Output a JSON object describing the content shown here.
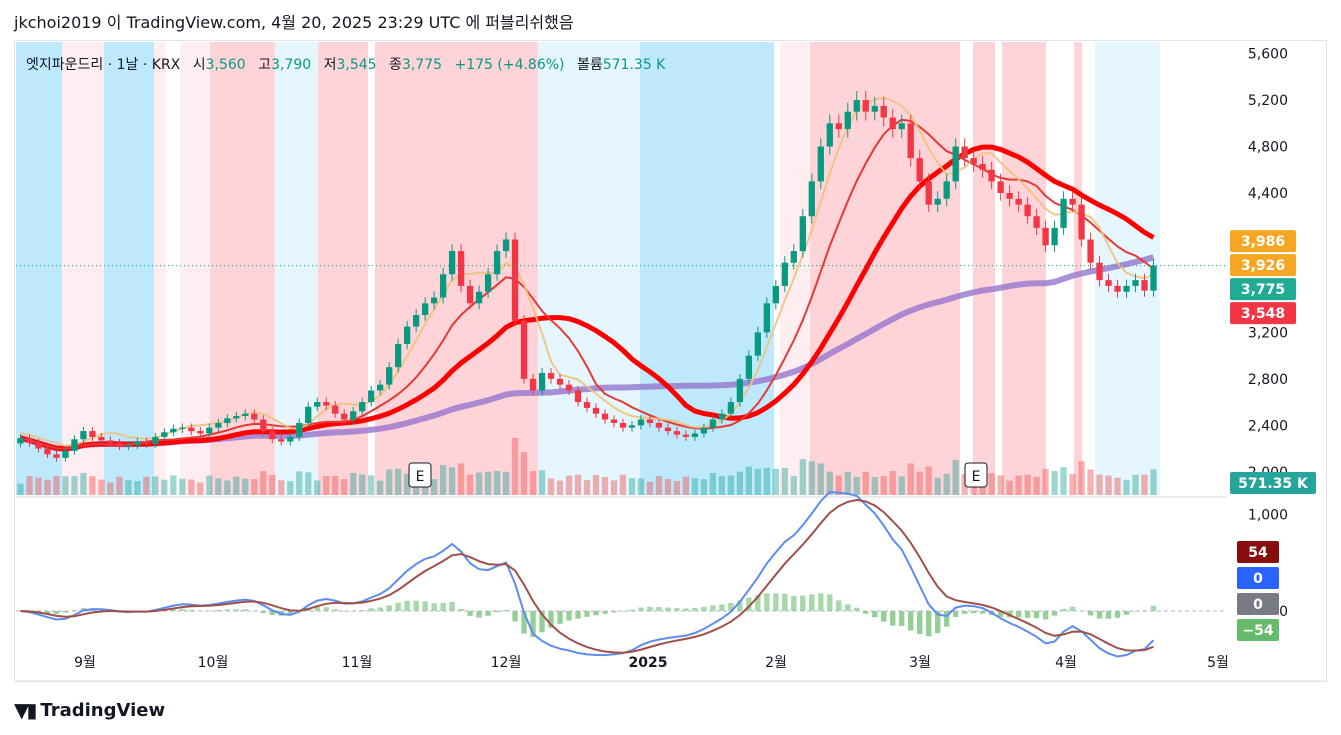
{
  "header": {
    "published_line": "jkchoi2019 이 TradingView.com, 4월 20, 2025 23:29 UTC 에 퍼블리쉬했음"
  },
  "legend": {
    "symbol": "엣지파운드리 · 1날 · KRX",
    "open_label": "시",
    "open_value": "3,560",
    "high_label": "고",
    "high_value": "3,790",
    "low_label": "저",
    "low_value": "3,545",
    "close_label": "종",
    "close_value": "3,775",
    "change": "+175 (+4.86%)",
    "volume_label": "볼륨",
    "volume_value": "571.35 K"
  },
  "price_axis": {
    "ticks": [
      "5,600",
      "5,200",
      "4,800",
      "4,400",
      "4,000",
      "3,600",
      "3,200",
      "2,800",
      "2,400",
      "2,000"
    ],
    "tick_values": [
      5600,
      5200,
      4800,
      4400,
      4000,
      3600,
      3200,
      2800,
      2400,
      2000
    ],
    "badges": [
      {
        "label": "3,986",
        "value": 3986,
        "color": "#f5a623"
      },
      {
        "label": "3,926",
        "value": 3926,
        "color": "#f5a623"
      },
      {
        "label": "3,775",
        "value": 3775,
        "color": "#22ab94"
      },
      {
        "label": "3,548",
        "value": 3548,
        "color": "#f23645"
      }
    ],
    "volume_badge": {
      "label": "571.35 K",
      "color": "#26a69a"
    }
  },
  "osc_axis": {
    "ticks": [
      "1,000",
      "0"
    ],
    "tick_values": [
      1000,
      0
    ],
    "badges": [
      {
        "label": "54",
        "value": 54,
        "color": "#880e0e"
      },
      {
        "label": "0",
        "value": 0,
        "color": "#2962ff"
      },
      {
        "label": "0",
        "value": 0,
        "color": "#787b86"
      },
      {
        "label": "−54",
        "value": -54,
        "color": "#66bb6a"
      }
    ]
  },
  "time_axis": {
    "labels": [
      "9월",
      "10월",
      "11월",
      "12월",
      "2025",
      "2월",
      "3월",
      "4월",
      "5월"
    ]
  },
  "earnings_markers": [
    "E",
    "E"
  ],
  "brand": {
    "name": "TradingView"
  },
  "chart_data": {
    "type": "candlestick",
    "price_range": [
      1800,
      5700
    ],
    "oscillator_range": [
      -300,
      1150
    ],
    "last_close": 3775,
    "ohlc_last": {
      "open": 3560,
      "high": 3790,
      "low": 3545,
      "close": 3775
    },
    "close_series": [
      2290,
      2250,
      2200,
      2150,
      2120,
      2180,
      2280,
      2350,
      2300,
      2270,
      2250,
      2220,
      2230,
      2260,
      2240,
      2300,
      2340,
      2370,
      2380,
      2350,
      2330,
      2380,
      2420,
      2460,
      2480,
      2500,
      2450,
      2350,
      2280,
      2260,
      2300,
      2420,
      2560,
      2600,
      2570,
      2500,
      2450,
      2520,
      2600,
      2700,
      2750,
      2900,
      3100,
      3250,
      3350,
      3450,
      3500,
      3700,
      3900,
      3600,
      3450,
      3550,
      3700,
      3900,
      4000,
      3300,
      2800,
      2700,
      2850,
      2800,
      2750,
      2700,
      2600,
      2550,
      2500,
      2450,
      2420,
      2380,
      2400,
      2450,
      2420,
      2380,
      2350,
      2320,
      2300,
      2330,
      2380,
      2450,
      2500,
      2600,
      2800,
      3000,
      3200,
      3450,
      3600,
      3800,
      3900,
      4200,
      4500,
      4800,
      5000,
      4950,
      5100,
      5200,
      5100,
      5150,
      5050,
      4950,
      5000,
      4700,
      4500,
      4300,
      4350,
      4500,
      4800,
      4700,
      4650,
      4600,
      4500,
      4400,
      4350,
      4300,
      4200,
      4100,
      3950,
      4100,
      4350,
      4300,
      4000,
      3800,
      3650,
      3600,
      3550,
      3600,
      3650,
      3560,
      3775
    ],
    "volume_note": "571.35 K"
  }
}
